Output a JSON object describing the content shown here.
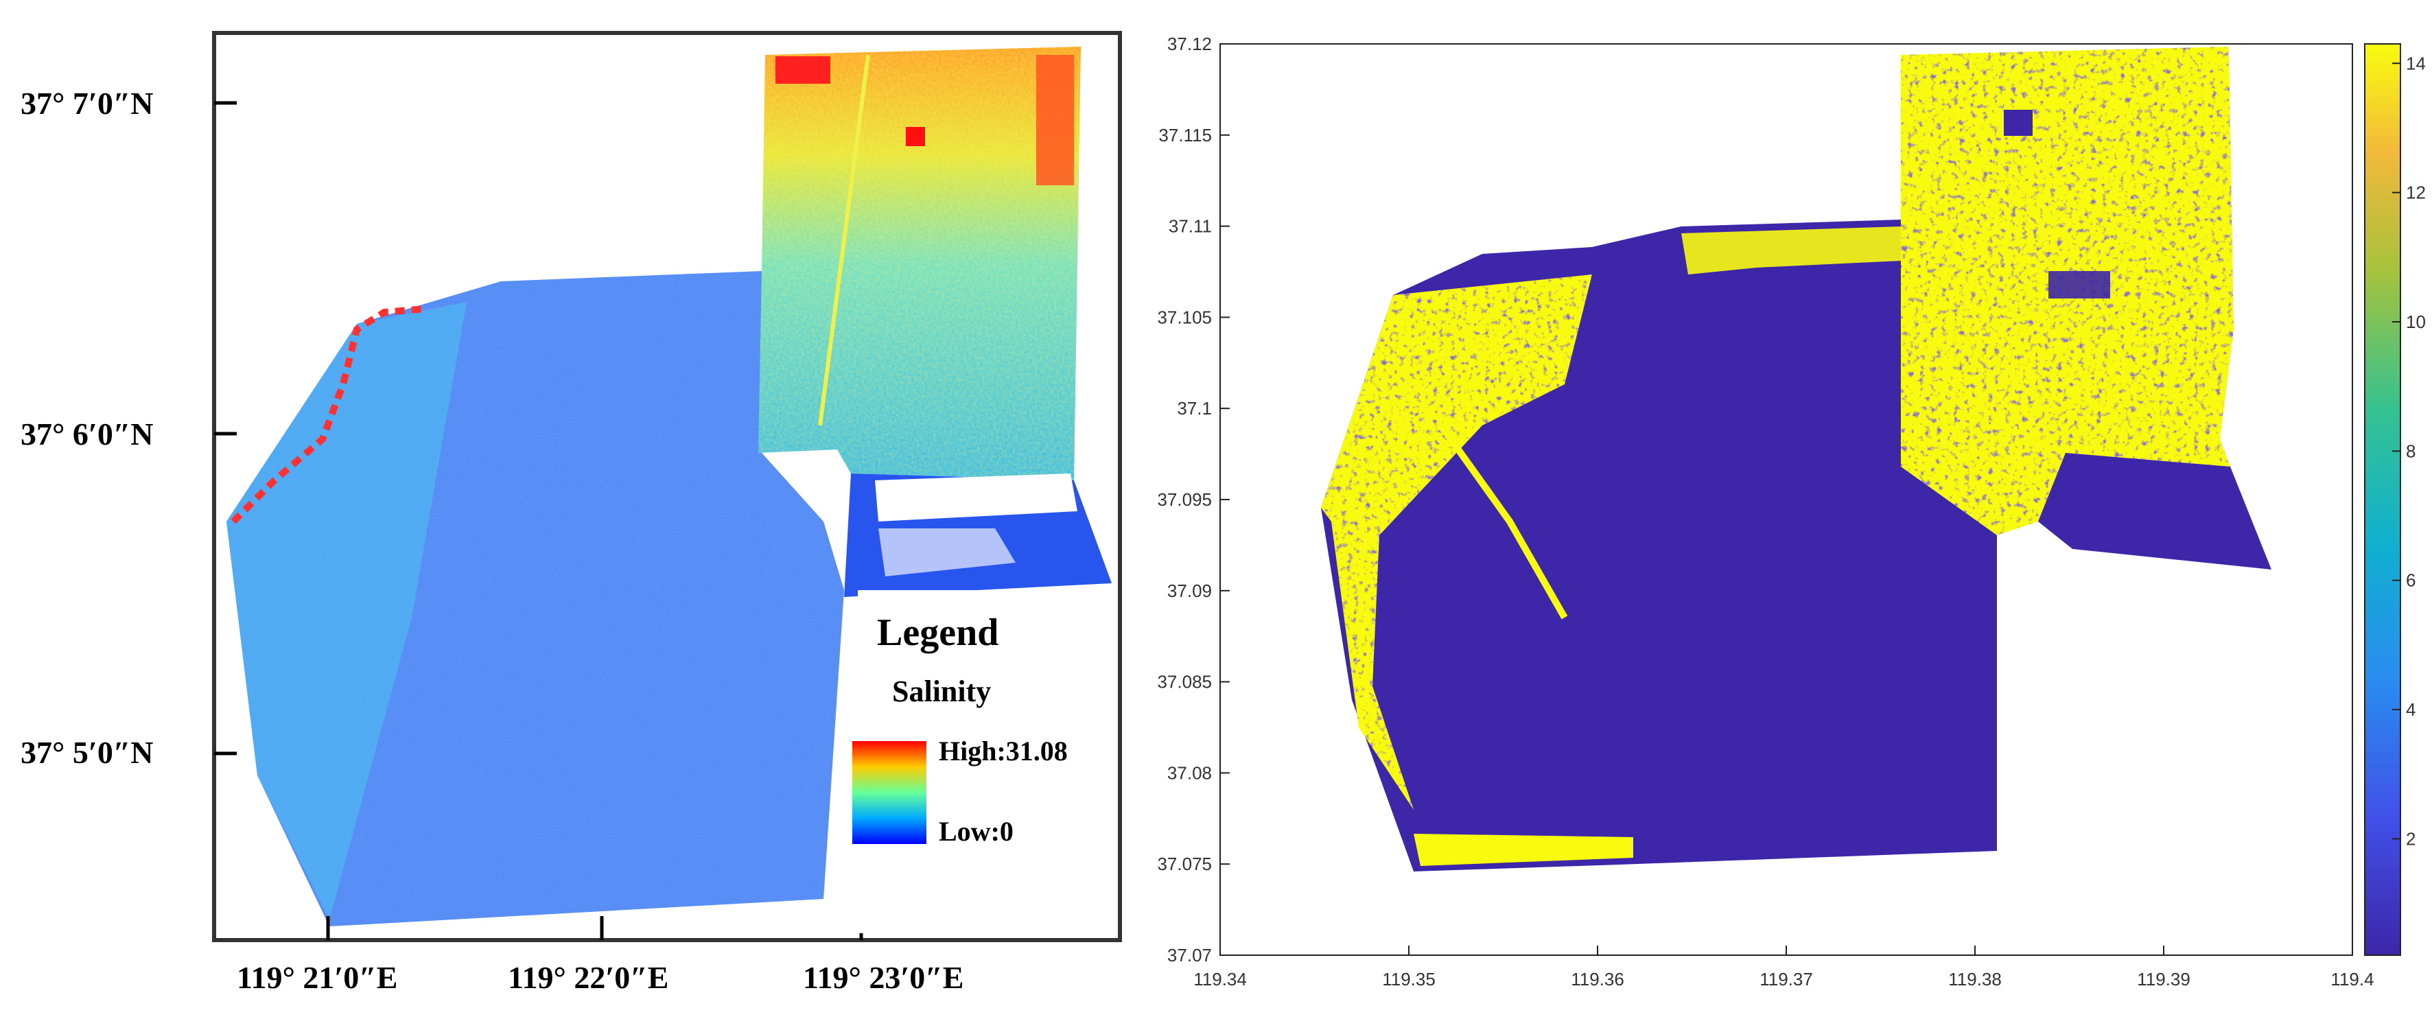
{
  "left_map": {
    "lat_labels": [
      "37° 7′0″N",
      "37° 6′0″N",
      "37° 5′0″N"
    ],
    "lon_labels": [
      "119° 21′0″E",
      "119° 22′0″E",
      "119° 23′0″E"
    ],
    "legend": {
      "title": "Legend",
      "subtitle": "Salinity",
      "high_label": "High:31.08",
      "low_label": "Low:0",
      "colors": [
        "#ff0000",
        "#ffee00",
        "#00ffcc",
        "#0080ff",
        "#0000ff"
      ]
    }
  },
  "chart_data": {
    "type": "heatmap",
    "x_ticks": [
      "119.34",
      "119.35",
      "119.36",
      "119.37",
      "119.38",
      "119.39",
      "119.4"
    ],
    "y_ticks": [
      "37.12",
      "37.115",
      "37.11",
      "37.105",
      "37.1",
      "37.095",
      "37.09",
      "37.085",
      "37.08",
      "37.075",
      "37.07"
    ],
    "x_range": [
      119.34,
      119.4
    ],
    "y_range": [
      37.07,
      37.12
    ],
    "colorbar_ticks": [
      "14",
      "12",
      "10",
      "8",
      "6",
      "4",
      "2"
    ],
    "colorbar_range": [
      0.2,
      14.3
    ],
    "colors": {
      "low": "#3d26a8",
      "high": "#f9fb0e"
    }
  }
}
